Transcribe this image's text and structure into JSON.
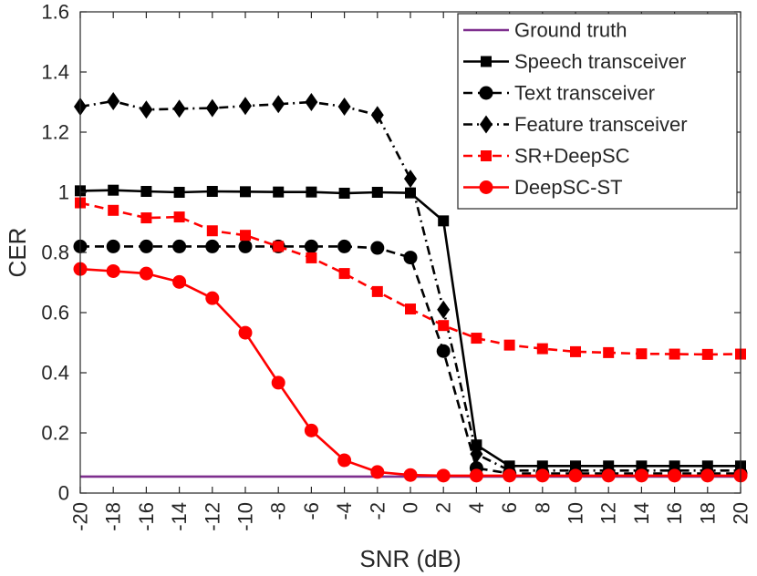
{
  "chart_data": {
    "type": "line",
    "title": "",
    "xlabel": "SNR (dB)",
    "ylabel": "CER",
    "x": [
      -20,
      -18,
      -16,
      -14,
      -12,
      -10,
      -8,
      -6,
      -4,
      -2,
      0,
      2,
      4,
      6,
      8,
      10,
      12,
      14,
      16,
      18,
      20
    ],
    "xlim": [
      -20,
      20
    ],
    "ylim": [
      0,
      1.6
    ],
    "xticks": [
      "-20",
      "-18",
      "-16",
      "-14",
      "-12",
      "-10",
      "-8",
      "-6",
      "-4",
      "-2",
      "0",
      "2",
      "4",
      "6",
      "8",
      "10",
      "12",
      "14",
      "16",
      "18",
      "20"
    ],
    "yticks": [
      "0",
      "0.2",
      "0.4",
      "0.6",
      "0.8",
      "1",
      "1.2",
      "1.4",
      "1.6"
    ],
    "ytick_values": [
      0,
      0.2,
      0.4,
      0.6,
      0.8,
      1.0,
      1.2,
      1.4,
      1.6
    ],
    "grid": false,
    "legend_position": "top-right",
    "series": [
      {
        "name": "Ground truth",
        "color": "#7e2f8e",
        "dash": "solid",
        "marker": "none",
        "values": [
          0.055,
          0.055,
          0.055,
          0.055,
          0.055,
          0.055,
          0.055,
          0.055,
          0.055,
          0.055,
          0.055,
          0.055,
          0.055,
          0.055,
          0.055,
          0.055,
          0.055,
          0.055,
          0.055,
          0.055,
          0.055
        ]
      },
      {
        "name": "Speech transceiver",
        "color": "#000000",
        "dash": "solid",
        "marker": "square",
        "values": [
          1.005,
          1.007,
          1.003,
          1.0,
          1.003,
          1.002,
          1.001,
          1.001,
          0.997,
          1.0,
          0.998,
          0.905,
          0.16,
          0.09,
          0.09,
          0.09,
          0.09,
          0.09,
          0.09,
          0.09,
          0.09
        ]
      },
      {
        "name": "Text transceiver",
        "color": "#000000",
        "dash": "dashed",
        "marker": "circle",
        "values": [
          0.82,
          0.82,
          0.82,
          0.82,
          0.82,
          0.82,
          0.82,
          0.82,
          0.82,
          0.815,
          0.783,
          0.472,
          0.083,
          0.065,
          0.065,
          0.065,
          0.065,
          0.065,
          0.065,
          0.065,
          0.065
        ]
      },
      {
        "name": "Feature transceiver",
        "color": "#000000",
        "dash": "dashdot",
        "marker": "diamond",
        "values": [
          1.285,
          1.303,
          1.275,
          1.278,
          1.28,
          1.287,
          1.293,
          1.3,
          1.285,
          1.257,
          1.045,
          0.61,
          0.13,
          0.075,
          0.075,
          0.075,
          0.075,
          0.075,
          0.075,
          0.075,
          0.075
        ]
      },
      {
        "name": "SR+DeepSC",
        "color": "#ff0000",
        "dash": "dashed",
        "marker": "square",
        "values": [
          0.965,
          0.94,
          0.915,
          0.918,
          0.872,
          0.857,
          0.82,
          0.782,
          0.73,
          0.67,
          0.612,
          0.557,
          0.515,
          0.492,
          0.48,
          0.47,
          0.467,
          0.463,
          0.462,
          0.461,
          0.462
        ]
      },
      {
        "name": "DeepSC-ST",
        "color": "#ff0000",
        "dash": "solid",
        "marker": "circle",
        "values": [
          0.745,
          0.738,
          0.73,
          0.702,
          0.648,
          0.533,
          0.367,
          0.208,
          0.109,
          0.07,
          0.06,
          0.058,
          0.058,
          0.058,
          0.058,
          0.058,
          0.058,
          0.058,
          0.058,
          0.058,
          0.058
        ]
      }
    ]
  }
}
